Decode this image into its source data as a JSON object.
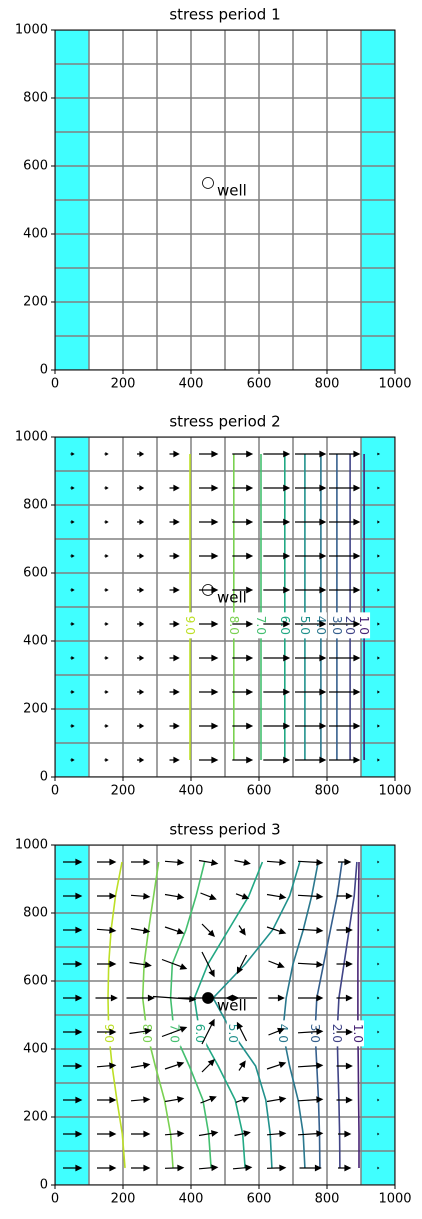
{
  "chart_data": [
    {
      "type": "model-map",
      "title": "stress period 1",
      "xlim": [
        0,
        1000
      ],
      "ylim": [
        0,
        1000
      ],
      "xticks": [
        0,
        200,
        400,
        600,
        800,
        1000
      ],
      "yticks": [
        0,
        200,
        400,
        600,
        800,
        1000
      ],
      "cell_edges": [
        0,
        100,
        200,
        300,
        400,
        500,
        600,
        700,
        800,
        900,
        1000
      ],
      "grid_color": "#808080",
      "constant_head": [
        [
          0,
          100
        ],
        [
          900,
          1000
        ]
      ],
      "constant_head_color": "#40ffff",
      "well": {
        "x": 450,
        "y": 550,
        "label": "well",
        "fill": "none"
      }
    },
    {
      "type": "model-map",
      "title": "stress period 2",
      "xlim": [
        0,
        1000
      ],
      "ylim": [
        0,
        1000
      ],
      "xticks": [
        0,
        200,
        400,
        600,
        800,
        1000
      ],
      "yticks": [
        0,
        200,
        400,
        600,
        800,
        1000
      ],
      "cell_edges": [
        0,
        100,
        200,
        300,
        400,
        500,
        600,
        700,
        800,
        900,
        1000
      ],
      "grid_color": "#808080",
      "constant_head": [
        [
          0,
          100
        ],
        [
          900,
          1000
        ]
      ],
      "constant_head_color": "#40ffff",
      "well": {
        "x": 450,
        "y": 550,
        "label": "well",
        "fill": "none"
      },
      "contours": [
        {
          "level": 9,
          "label": "9.0",
          "color": "#bddf26",
          "x": [
            397,
            397
          ],
          "y": [
            950,
            50
          ]
        },
        {
          "level": 8,
          "label": "8.0",
          "color": "#7ad151",
          "x": [
            526,
            526
          ],
          "y": [
            950,
            50
          ]
        },
        {
          "level": 7,
          "label": "7.0",
          "color": "#44bf70",
          "x": [
            606,
            606
          ],
          "y": [
            950,
            50
          ]
        },
        {
          "level": 6,
          "label": "6.0",
          "color": "#22a884",
          "x": [
            676,
            676
          ],
          "y": [
            950,
            50
          ]
        },
        {
          "level": 5,
          "label": "5.0",
          "color": "#21918c",
          "x": [
            735,
            735
          ],
          "y": [
            950,
            50
          ]
        },
        {
          "level": 4,
          "label": "4.0",
          "color": "#2a788e",
          "x": [
            782,
            782
          ],
          "y": [
            950,
            50
          ]
        },
        {
          "level": 3,
          "label": "3.0",
          "color": "#355f8d",
          "x": [
            829,
            829
          ],
          "y": [
            950,
            50
          ]
        },
        {
          "level": 2,
          "label": "2.0",
          "color": "#414487",
          "x": [
            868,
            868
          ],
          "y": [
            950,
            50
          ]
        },
        {
          "level": 1,
          "label": "1.0",
          "color": "#482475",
          "x": [
            909,
            909
          ],
          "y": [
            950,
            50
          ]
        }
      ],
      "quiver": {
        "x": [
          50,
          150,
          250,
          350,
          450,
          550,
          650,
          750,
          850,
          950
        ],
        "y": [
          950,
          850,
          750,
          650,
          550,
          450,
          350,
          250,
          150,
          50
        ],
        "u": [
          0.1,
          0.1,
          0.2,
          0.3,
          0.6,
          0.65,
          0.85,
          1.0,
          1.0,
          0.05
        ],
        "v": [
          0,
          0,
          0,
          0,
          0,
          0,
          0,
          0,
          0,
          0
        ]
      }
    },
    {
      "type": "model-map",
      "title": "stress period 3",
      "xlim": [
        0,
        1000
      ],
      "ylim": [
        0,
        1000
      ],
      "xticks": [
        0,
        200,
        400,
        600,
        800,
        1000
      ],
      "yticks": [
        0,
        200,
        400,
        600,
        800,
        1000
      ],
      "cell_edges": [
        0,
        100,
        200,
        300,
        400,
        500,
        600,
        700,
        800,
        900,
        1000
      ],
      "grid_color": "#808080",
      "constant_head": [
        [
          0,
          100
        ],
        [
          900,
          1000
        ]
      ],
      "constant_head_color": "#40ffff",
      "well": {
        "x": 450,
        "y": 550,
        "label": "well",
        "fill": "#000000"
      },
      "contours": [
        {
          "level": 9,
          "label": "9.0",
          "color": "#bddf26",
          "x": [
            197,
            178,
            165,
            158,
            156,
            158,
            168,
            182,
            198,
            206
          ],
          "y": [
            950,
            850,
            750,
            650,
            550,
            450,
            350,
            250,
            150,
            50
          ]
        },
        {
          "level": 8,
          "label": "8.0",
          "color": "#7ad151",
          "x": [
            305,
            290,
            275,
            262,
            258,
            270,
            295,
            322,
            340,
            347
          ],
          "y": [
            950,
            850,
            750,
            650,
            550,
            450,
            350,
            250,
            150,
            50
          ]
        },
        {
          "level": 7,
          "label": "7.0",
          "color": "#44bf70",
          "x": [
            440,
            415,
            385,
            345,
            340,
            350,
            395,
            435,
            452,
            459
          ],
          "y": [
            950,
            850,
            750,
            650,
            550,
            450,
            350,
            250,
            150,
            50
          ]
        },
        {
          "level": 6,
          "label": "6.0",
          "color": "#22a884",
          "x": [
            610,
            570,
            510,
            450,
            410,
            425,
            480,
            530,
            552,
            559
          ],
          "y": [
            950,
            850,
            750,
            650,
            550,
            450,
            350,
            250,
            150,
            50
          ]
        },
        {
          "level": 5,
          "label": "5.0",
          "color": "#21918c",
          "x": [
            720,
            690,
            640,
            560,
            465,
            520,
            590,
            620,
            633,
            638
          ],
          "y": [
            950,
            850,
            750,
            650,
            550,
            450,
            350,
            250,
            150,
            50
          ]
        },
        {
          "level": 4,
          "label": "4.0",
          "color": "#2a788e",
          "x": [
            774,
            755,
            730,
            700,
            680,
            670,
            690,
            715,
            730,
            735
          ],
          "y": [
            950,
            850,
            750,
            650,
            550,
            450,
            350,
            250,
            150,
            50
          ]
        },
        {
          "level": 3,
          "label": "3.0",
          "color": "#355f8d",
          "x": [
            844,
            830,
            810,
            790,
            770,
            765,
            770,
            775,
            778,
            779
          ],
          "y": [
            950,
            850,
            750,
            650,
            550,
            450,
            350,
            250,
            150,
            50
          ]
        },
        {
          "level": 2,
          "label": "2.0",
          "color": "#414487",
          "x": [
            888,
            880,
            865,
            850,
            835,
            830,
            832,
            835,
            837,
            838
          ],
          "y": [
            950,
            850,
            750,
            650,
            550,
            450,
            350,
            250,
            150,
            50
          ]
        },
        {
          "level": 1,
          "label": "1.0",
          "color": "#482475",
          "x": [
            894,
            893,
            892,
            891,
            891,
            891,
            892,
            893,
            894,
            894
          ],
          "y": [
            950,
            850,
            750,
            650,
            550,
            450,
            350,
            250,
            150,
            50
          ]
        }
      ],
      "quiver": {
        "x": [
          50,
          150,
          250,
          350,
          450,
          550,
          650,
          750,
          850,
          950
        ],
        "y": [
          950,
          850,
          750,
          650,
          550,
          450,
          350,
          250,
          150,
          50
        ],
        "u": [
          [
            0.6,
            0.6,
            0.6,
            0.6,
            0.6,
            0.5,
            0.6,
            0.8,
            0.4,
            0.02
          ],
          [
            0.6,
            0.6,
            0.6,
            0.6,
            0.5,
            0.4,
            0.6,
            0.8,
            0.5,
            0.02
          ],
          [
            0.6,
            0.6,
            0.6,
            0.6,
            0.4,
            0.2,
            0.6,
            0.8,
            0.5,
            0.02
          ],
          [
            0.6,
            0.6,
            0.7,
            0.8,
            0.4,
            -0.3,
            0.5,
            0.8,
            0.5,
            0.02
          ],
          [
            0.6,
            0.7,
            0.9,
            1.4,
            2.0,
            -1.0,
            0.5,
            0.8,
            0.5,
            0.02
          ],
          [
            0.6,
            0.6,
            0.7,
            0.8,
            0.4,
            -0.3,
            0.5,
            0.8,
            0.5,
            0.02
          ],
          [
            0.6,
            0.6,
            0.6,
            0.6,
            0.4,
            0.2,
            0.6,
            0.8,
            0.5,
            0.02
          ],
          [
            0.6,
            0.6,
            0.6,
            0.6,
            0.5,
            0.4,
            0.6,
            0.8,
            0.5,
            0.02
          ],
          [
            0.6,
            0.6,
            0.6,
            0.6,
            0.6,
            0.5,
            0.6,
            0.8,
            0.4,
            0.02
          ],
          [
            0.6,
            0.6,
            0.6,
            0.6,
            0.6,
            0.6,
            0.6,
            0.7,
            0.4,
            0.02
          ]
        ],
        "v": [
          [
            0,
            0,
            0,
            -0.05,
            -0.1,
            -0.1,
            -0.05,
            -0.05,
            0,
            0
          ],
          [
            0,
            0,
            -0.05,
            -0.1,
            -0.2,
            -0.15,
            -0.1,
            -0.05,
            0,
            0
          ],
          [
            0,
            -0.05,
            -0.1,
            -0.2,
            -0.4,
            -0.3,
            -0.2,
            -0.05,
            0,
            0
          ],
          [
            0,
            0,
            -0.1,
            -0.3,
            -0.8,
            -0.6,
            -0.2,
            -0.05,
            0,
            0
          ],
          [
            0,
            0,
            0,
            -0.1,
            0,
            0,
            0,
            0,
            0,
            0
          ],
          [
            0,
            0,
            0.1,
            0.3,
            0.8,
            0.6,
            0.2,
            0.05,
            0,
            0
          ],
          [
            0,
            0.05,
            0.1,
            0.2,
            0.4,
            0.3,
            0.2,
            0.05,
            0,
            0
          ],
          [
            0,
            0,
            0.05,
            0.1,
            0.2,
            0.15,
            0.1,
            0.05,
            0,
            0
          ],
          [
            0,
            0,
            0,
            0.05,
            0.1,
            0.1,
            0.05,
            0.05,
            0,
            0
          ],
          [
            0,
            0,
            0,
            0.02,
            0.05,
            0.05,
            0.02,
            0,
            0,
            0
          ]
        ]
      }
    }
  ]
}
